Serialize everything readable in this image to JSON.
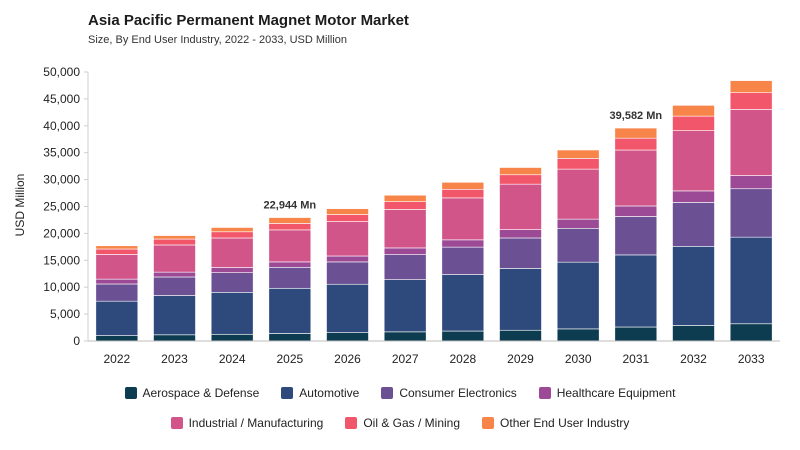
{
  "chart_data": {
    "type": "bar",
    "stacked": true,
    "title": "Asia Pacific Permanent Magnet Motor Market",
    "subtitle": "Size, By End User Industry, 2022 - 2033, USD Million",
    "xlabel": "",
    "ylabel": "USD Million",
    "ylim": [
      0,
      50000
    ],
    "yticks": [
      0,
      5000,
      10000,
      15000,
      20000,
      25000,
      30000,
      35000,
      40000,
      45000,
      50000
    ],
    "ytick_labels": [
      "0",
      "5,000",
      "10,000",
      "15,000",
      "20,000",
      "25,000",
      "30,000",
      "35,000",
      "40,000",
      "45,000",
      "50,000"
    ],
    "grid": false,
    "legend_position": "bottom",
    "categories": [
      "2022",
      "2023",
      "2024",
      "2025",
      "2026",
      "2027",
      "2028",
      "2029",
      "2030",
      "2031",
      "2032",
      "2033"
    ],
    "series": [
      {
        "name": "Aerospace & Defense",
        "color": "#0d3b4f",
        "values": [
          1000,
          1150,
          1250,
          1400,
          1550,
          1700,
          1850,
          2000,
          2250,
          2600,
          2900,
          3200
        ]
      },
      {
        "name": "Automotive",
        "color": "#2e4a7d",
        "values": [
          6400,
          7300,
          7800,
          8400,
          9000,
          9700,
          10500,
          11500,
          12400,
          13400,
          14700,
          16100
        ]
      },
      {
        "name": "Consumer Electronics",
        "color": "#6b5094",
        "values": [
          3200,
          3450,
          3650,
          3900,
          4150,
          4650,
          5100,
          5650,
          6300,
          7150,
          8150,
          9000
        ]
      },
      {
        "name": "Healthcare Equipment",
        "color": "#9c4a96",
        "values": [
          900,
          900,
          950,
          1000,
          1100,
          1250,
          1350,
          1550,
          1700,
          1950,
          2150,
          2450
        ]
      },
      {
        "name": "Industrial / Manufacturing",
        "color": "#d2558a",
        "values": [
          4600,
          5050,
          5500,
          5950,
          6400,
          7150,
          7800,
          8450,
          9300,
          10400,
          11200,
          12300
        ]
      },
      {
        "name": "Oil & Gas / Mining",
        "color": "#f2566a",
        "values": [
          1000,
          1100,
          1150,
          1200,
          1300,
          1450,
          1600,
          1750,
          2000,
          2200,
          2700,
          3100
        ]
      },
      {
        "name": "Other End User Industry",
        "color": "#f7854a",
        "values": [
          600,
          650,
          800,
          1094,
          1100,
          1200,
          1300,
          1350,
          1550,
          1882,
          2000,
          2250
        ]
      }
    ],
    "annotations": [
      {
        "category": "2025",
        "text": "22,944 Mn"
      },
      {
        "category": "2031",
        "text": "39,582 Mn"
      }
    ]
  }
}
